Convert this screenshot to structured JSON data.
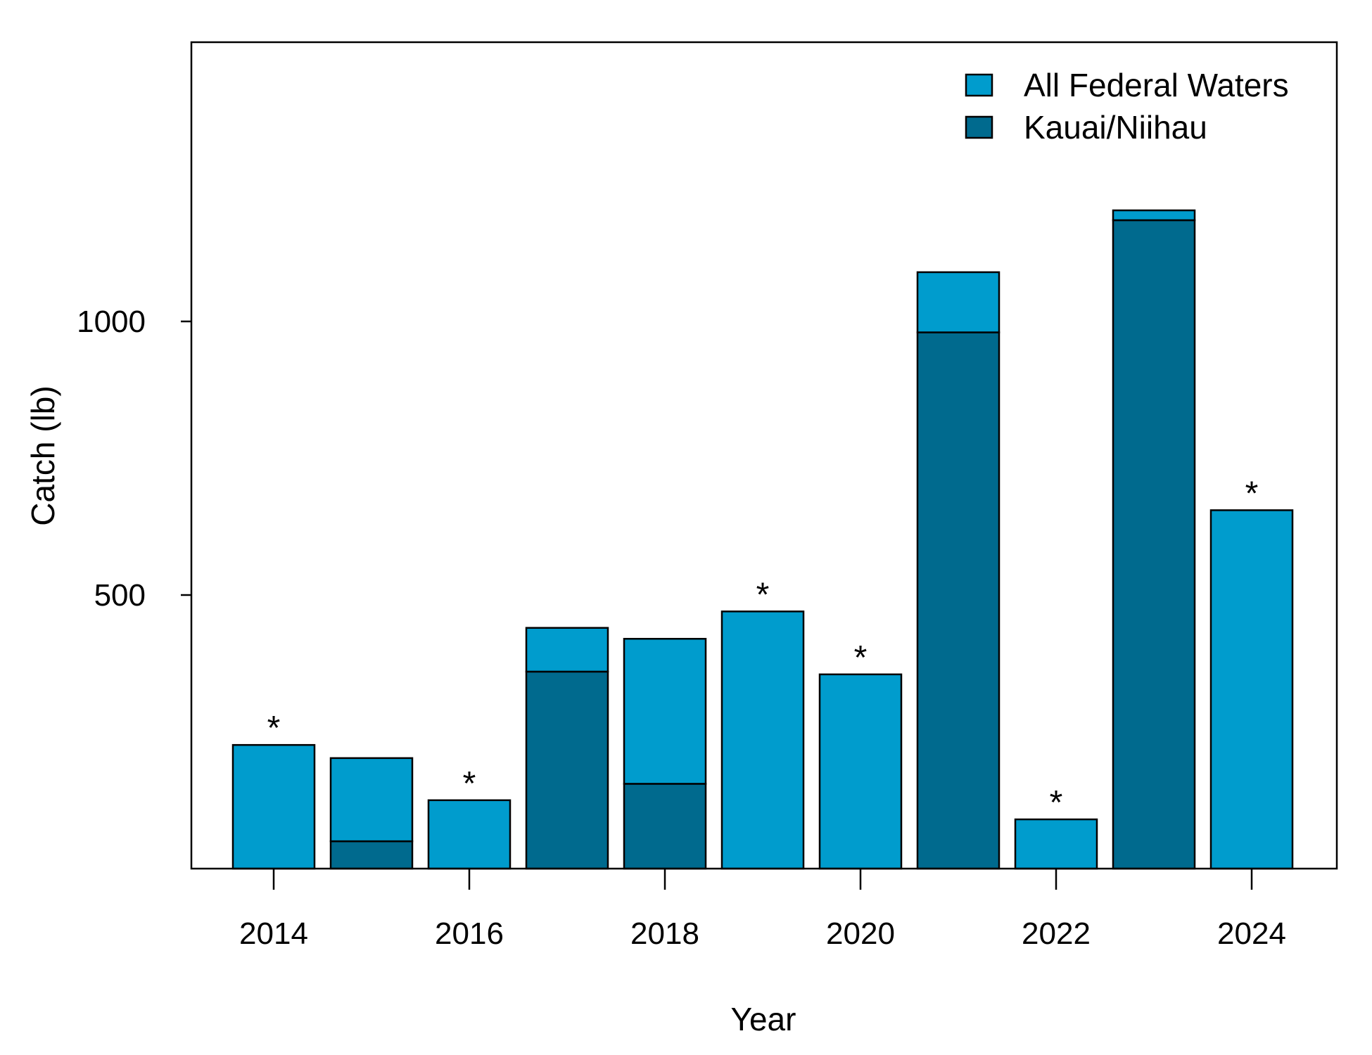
{
  "chart_data": {
    "type": "bar",
    "stacked": true,
    "xlabel": "Year",
    "ylabel": "Catch (lb)",
    "ylim": [
      0,
      1500
    ],
    "y_ticks": [
      500,
      1000
    ],
    "x_ticks": [
      "2014",
      "2016",
      "2018",
      "2020",
      "2022",
      "2024"
    ],
    "categories": [
      "2014",
      "2015",
      "2016",
      "2017",
      "2018",
      "2019",
      "2020",
      "2021",
      "2022",
      "2023",
      "2024"
    ],
    "series": [
      {
        "name": "Kauai/Niihau",
        "color": "#006a8e",
        "values": [
          0,
          50,
          0,
          360,
          155,
          0,
          0,
          980,
          0,
          1185,
          0
        ]
      },
      {
        "name": "All Federal Waters",
        "color": "#009ccd",
        "values": [
          226,
          152,
          125,
          80,
          265,
          470,
          355,
          110,
          90,
          18,
          655
        ]
      }
    ],
    "totals": [
      226,
      202,
      125,
      440,
      420,
      470,
      355,
      1090,
      90,
      1203,
      655
    ],
    "annotations": [
      {
        "x": "2014",
        "text": "*"
      },
      {
        "x": "2016",
        "text": "*"
      },
      {
        "x": "2019",
        "text": "*"
      },
      {
        "x": "2020",
        "text": "*"
      },
      {
        "x": "2022",
        "text": "*"
      },
      {
        "x": "2024",
        "text": "*"
      }
    ],
    "legend": {
      "position": "top-right",
      "items": [
        {
          "label": "All Federal Waters",
          "color": "#009ccd"
        },
        {
          "label": "Kauai/Niihau",
          "color": "#006a8e"
        }
      ]
    },
    "grid": false
  }
}
